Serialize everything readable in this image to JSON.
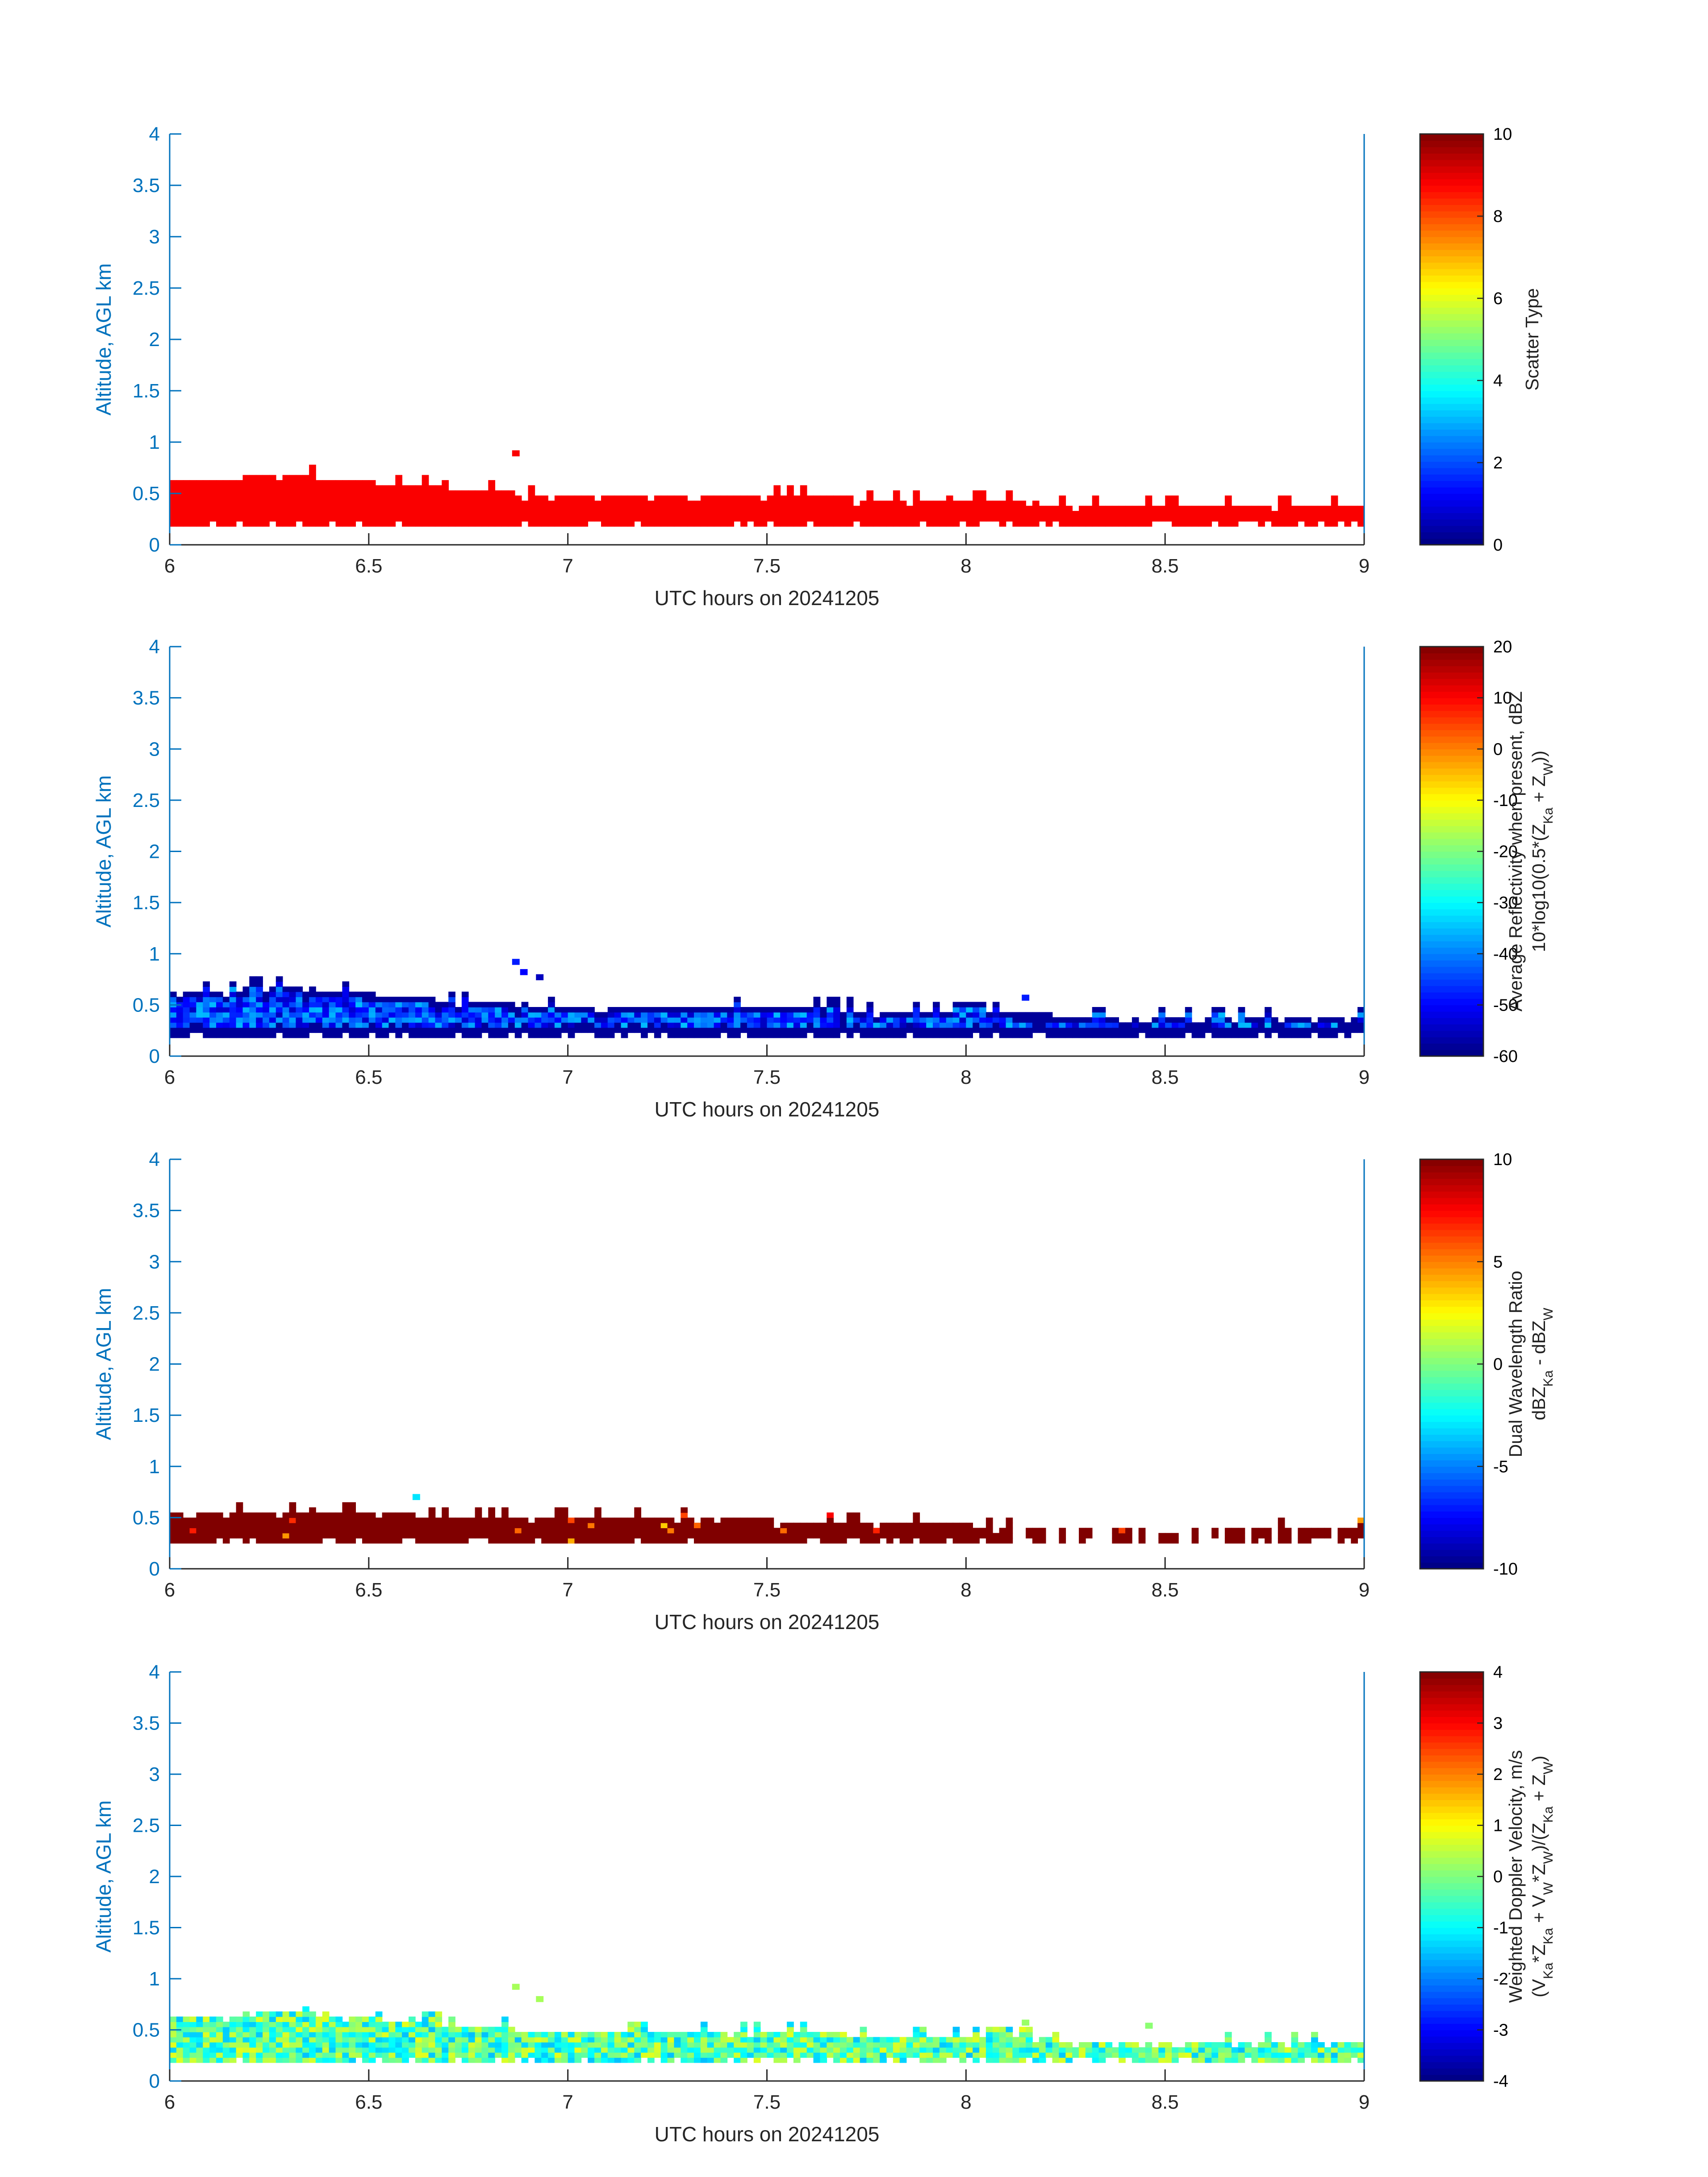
{
  "figure": {
    "background": "#ffffff",
    "axis_color": "#0072BD"
  },
  "chart_data": [
    {
      "type": "heatmap",
      "xlabel": "UTC hours on 20241205",
      "ylabel": "Altitude, AGL km",
      "xlim": [
        6,
        9
      ],
      "ylim": [
        0,
        4
      ],
      "xticks": [
        "6",
        "6.5",
        "7",
        "7.5",
        "8",
        "8.5",
        "9"
      ],
      "yticks": [
        "0",
        "0.5",
        "1",
        "1.5",
        "2",
        "2.5",
        "3",
        "3.5",
        "4"
      ],
      "colormap": "jet",
      "colorbar": {
        "label_lines": [
          "Scatter Type"
        ],
        "range": [
          0,
          10
        ],
        "ticks": [
          "0",
          "2",
          "4",
          "6",
          "8",
          "10"
        ]
      },
      "field": "scatter_type",
      "layer": {
        "base_km": 0.18,
        "top_x": [
          6,
          6.3,
          6.6,
          7,
          7.5,
          8,
          8.5,
          9
        ],
        "top_km": [
          0.6,
          0.65,
          0.55,
          0.45,
          0.45,
          0.4,
          0.35,
          0.38
        ]
      },
      "dominant_value": 8.8,
      "outliers": [
        {
          "x": 6.86,
          "y": 0.87,
          "value": 8.8
        }
      ]
    },
    {
      "type": "heatmap",
      "xlabel": "UTC hours on 20241205",
      "ylabel": "Altitude, AGL km",
      "xlim": [
        6,
        9
      ],
      "ylim": [
        0,
        4
      ],
      "xticks": [
        "6",
        "6.5",
        "7",
        "7.5",
        "8",
        "8.5",
        "9"
      ],
      "yticks": [
        "0",
        "0.5",
        "1",
        "1.5",
        "2",
        "2.5",
        "3",
        "3.5",
        "4"
      ],
      "colormap": "jet",
      "colorbar": {
        "label_lines": [
          "Average Reflectivity when present, dBZ",
          "10*log10(0.5*(Z_Ka + Z_W))"
        ],
        "range": [
          -60,
          20
        ],
        "ticks": [
          "-60",
          "-50",
          "-40",
          "-30",
          "-20",
          "-10",
          "0",
          "10",
          "20"
        ]
      },
      "field": "reflectivity",
      "layer": {
        "base_km": 0.18,
        "top_x": [
          6,
          6.3,
          6.6,
          7,
          7.5,
          8,
          8.5,
          9
        ],
        "top_km": [
          0.6,
          0.65,
          0.55,
          0.45,
          0.45,
          0.4,
          0.35,
          0.38
        ]
      },
      "value_range": [
        -55,
        -35
      ],
      "outliers": [
        {
          "x": 6.86,
          "y": 0.9,
          "value": -48
        },
        {
          "x": 6.88,
          "y": 0.8,
          "value": -50
        },
        {
          "x": 6.92,
          "y": 0.75,
          "value": -55
        },
        {
          "x": 8.14,
          "y": 0.55,
          "value": -48
        }
      ]
    },
    {
      "type": "heatmap",
      "xlabel": "UTC hours on 20241205",
      "ylabel": "Altitude, AGL km",
      "xlim": [
        6,
        9
      ],
      "ylim": [
        0,
        4
      ],
      "xticks": [
        "6",
        "6.5",
        "7",
        "7.5",
        "8",
        "8.5",
        "9"
      ],
      "yticks": [
        "0",
        "0.5",
        "1",
        "1.5",
        "2",
        "2.5",
        "3",
        "3.5",
        "4"
      ],
      "colormap": "jet",
      "colorbar": {
        "label_lines": [
          "Dual Wavelength Ratio",
          "dBZ_Ka - dBZ_W"
        ],
        "range": [
          -10,
          10
        ],
        "ticks": [
          "-10",
          "-5",
          "0",
          "5",
          "10"
        ]
      },
      "field": "dual_wavelength_ratio",
      "layer": {
        "base_km": 0.25,
        "top_x": [
          6,
          6.3,
          6.6,
          7,
          7.5,
          8,
          8.5,
          9
        ],
        "top_km": [
          0.52,
          0.55,
          0.5,
          0.45,
          0.45,
          0.4,
          0.35,
          0.38
        ]
      },
      "dominant_value": 10,
      "gaps_after_x": 8.1,
      "outliers": [
        {
          "x": 6.61,
          "y": 0.68,
          "value": -3
        }
      ]
    },
    {
      "type": "heatmap",
      "xlabel": "UTC hours on 20241205",
      "ylabel": "Altitude, AGL km",
      "xlim": [
        6,
        9
      ],
      "ylim": [
        0,
        4
      ],
      "xticks": [
        "6",
        "6.5",
        "7",
        "7.5",
        "8",
        "8.5",
        "9"
      ],
      "yticks": [
        "0",
        "0.5",
        "1",
        "1.5",
        "2",
        "2.5",
        "3",
        "3.5",
        "4"
      ],
      "colormap": "jet",
      "colorbar": {
        "label_lines": [
          "Weighted Doppler Velocity, m/s",
          "(V_Ka*Z_Ka + V_W*Z_W)/(Z_Ka + Z_W)"
        ],
        "range": [
          -4,
          4
        ],
        "ticks": [
          "-4",
          "-3",
          "-2",
          "-1",
          "0",
          "1",
          "2",
          "3",
          "4"
        ]
      },
      "field": "doppler_velocity",
      "layer": {
        "base_km": 0.18,
        "top_x": [
          6,
          6.3,
          6.6,
          7,
          7.5,
          8,
          8.5,
          9
        ],
        "top_km": [
          0.6,
          0.65,
          0.55,
          0.45,
          0.45,
          0.4,
          0.35,
          0.38
        ]
      },
      "value_range": [
        -1.5,
        0.8
      ],
      "outliers": [
        {
          "x": 6.86,
          "y": 0.9,
          "value": 0.3
        },
        {
          "x": 6.92,
          "y": 0.78,
          "value": 0.3
        },
        {
          "x": 8.14,
          "y": 0.55,
          "value": 0.2
        },
        {
          "x": 8.45,
          "y": 0.52,
          "value": 0.1
        }
      ]
    }
  ]
}
